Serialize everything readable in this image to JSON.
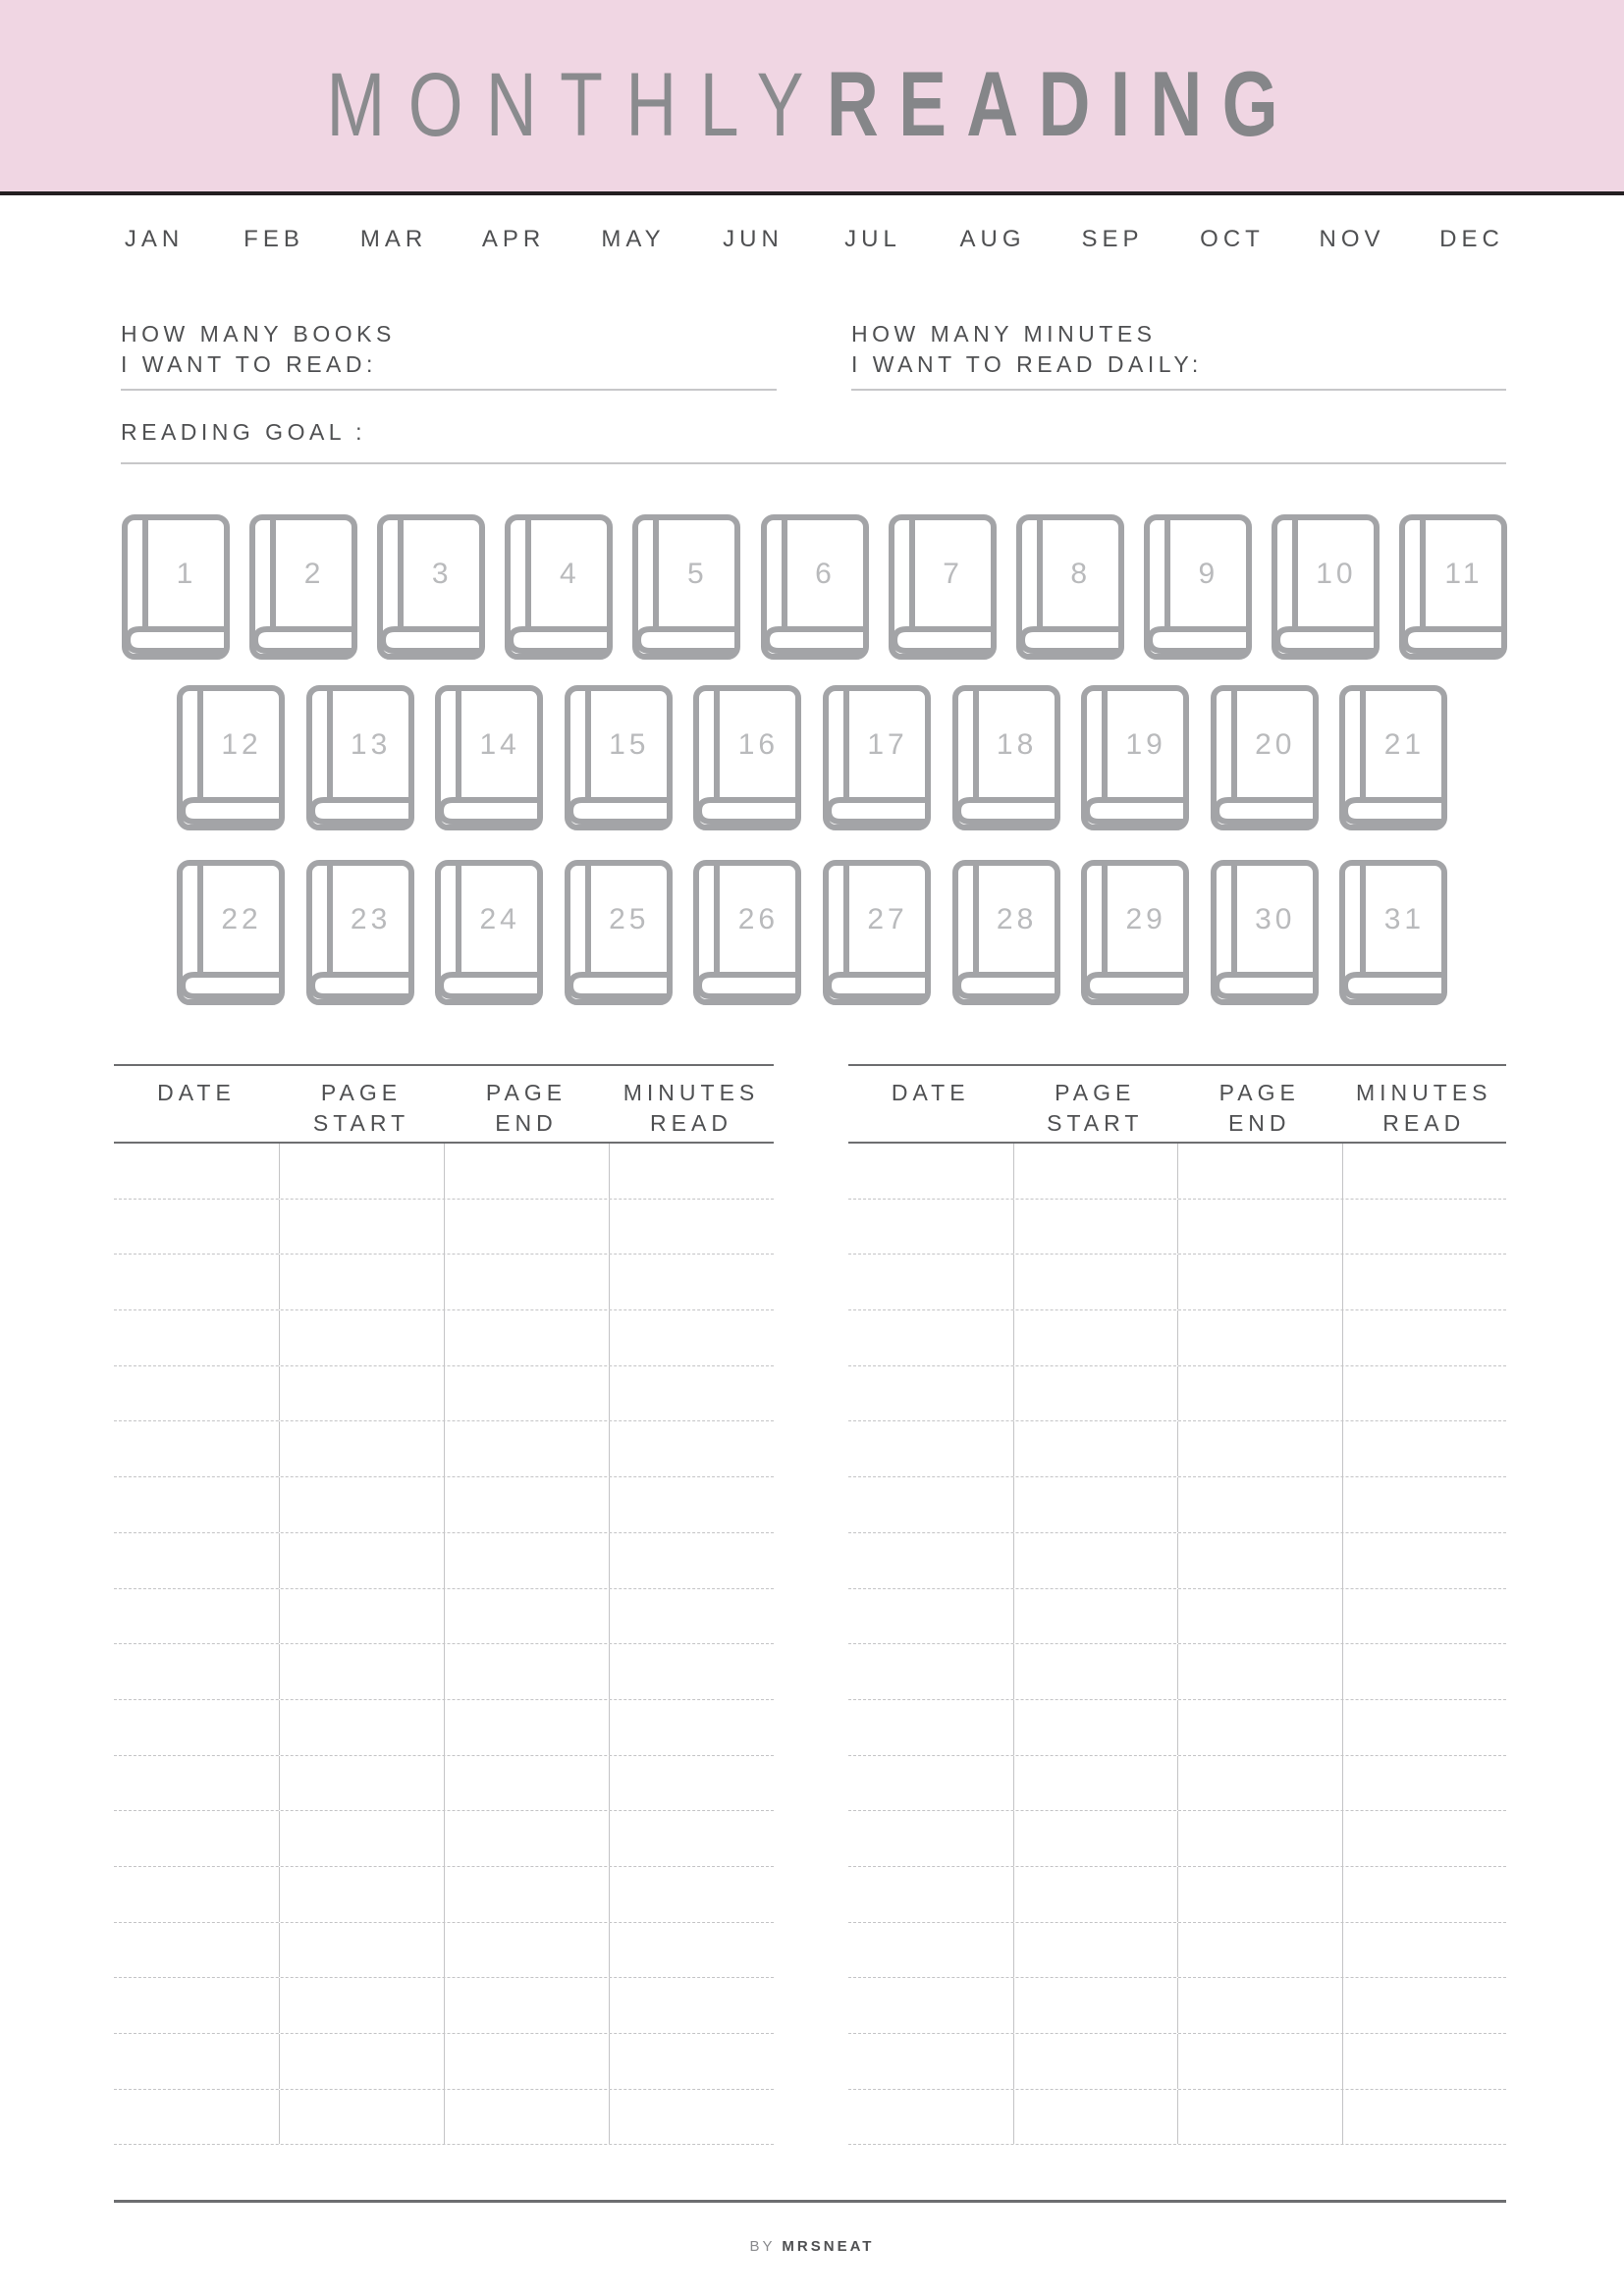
{
  "colors": {
    "header_bg": "#f0d6e3",
    "rule": "#231f20",
    "title": "#858689",
    "book_outline": "#a3a4a7",
    "book_number": "#b9babc"
  },
  "title": {
    "light": "MONTHLY",
    "bold": "READING"
  },
  "months": [
    "JAN",
    "FEB",
    "MAR",
    "APR",
    "MAY",
    "JUN",
    "JUL",
    "AUG",
    "SEP",
    "OCT",
    "NOV",
    "DEC"
  ],
  "goals": {
    "books_line1": "HOW MANY BOOKS",
    "books_line2": "I WANT TO READ:",
    "minutes_line1": "HOW MANY MINUTES",
    "minutes_line2": "I WANT TO READ DAILY:",
    "reading_goal": "READING GOAL :"
  },
  "books": [
    "1",
    "2",
    "3",
    "4",
    "5",
    "6",
    "7",
    "8",
    "9",
    "10",
    "11",
    "12",
    "13",
    "14",
    "15",
    "16",
    "17",
    "18",
    "19",
    "20",
    "21",
    "22",
    "23",
    "24",
    "25",
    "26",
    "27",
    "28",
    "29",
    "30",
    "31"
  ],
  "book_icon": "book-icon",
  "log_tables": [
    {
      "headers": [
        "DATE",
        "PAGE\nSTART",
        "PAGE\nEND",
        "MINUTES\nREAD"
      ]
    },
    {
      "headers": [
        "DATE",
        "PAGE\nSTART",
        "PAGE\nEND",
        "MINUTES\nREAD"
      ]
    }
  ],
  "footer": {
    "by": "BY",
    "brand": "MRSNEAT"
  }
}
